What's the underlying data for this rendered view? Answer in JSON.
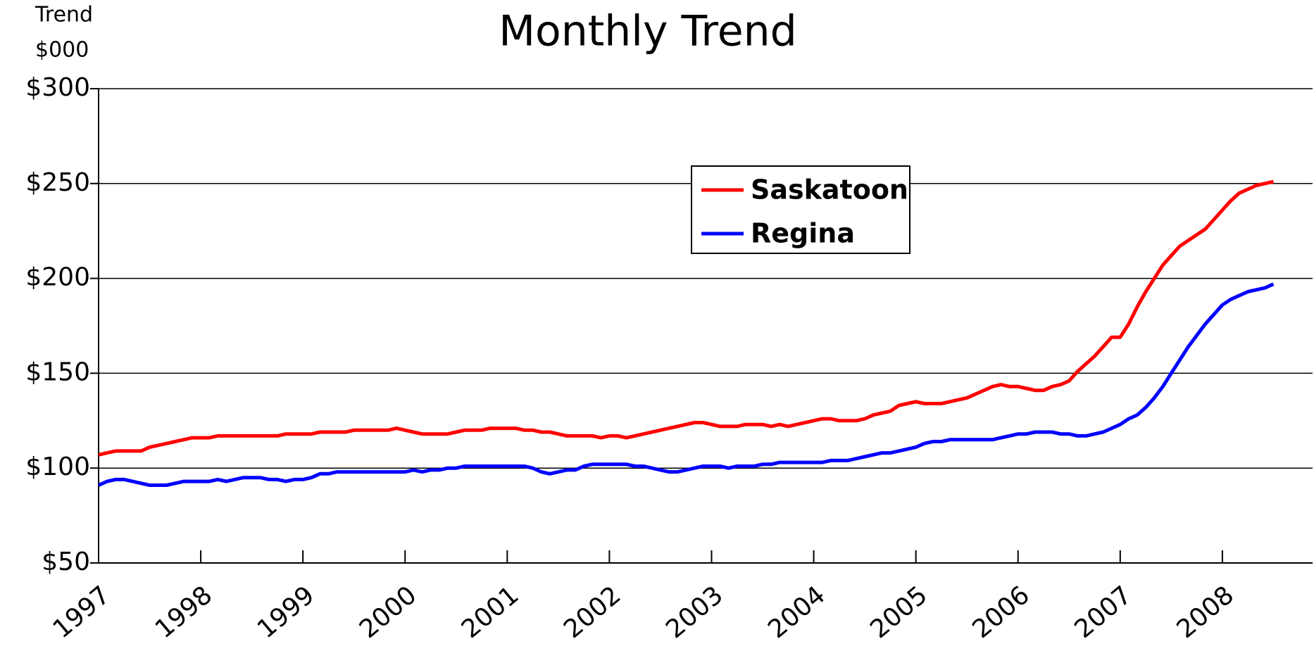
{
  "chart_data": {
    "type": "line",
    "title": "Monthly Trend",
    "y_label": [
      "Trend",
      "$000"
    ],
    "categories": [
      "1997",
      null,
      null,
      null,
      null,
      null,
      null,
      null,
      null,
      null,
      null,
      null,
      "1998",
      null,
      null,
      null,
      null,
      null,
      null,
      null,
      null,
      null,
      null,
      null,
      "1999",
      null,
      null,
      null,
      null,
      null,
      null,
      null,
      null,
      null,
      null,
      null,
      "2000",
      null,
      null,
      null,
      null,
      null,
      null,
      null,
      null,
      null,
      null,
      null,
      "2001",
      null,
      null,
      null,
      null,
      null,
      null,
      null,
      null,
      null,
      null,
      null,
      "2002",
      null,
      null,
      null,
      null,
      null,
      null,
      null,
      null,
      null,
      null,
      null,
      "2003",
      null,
      null,
      null,
      null,
      null,
      null,
      null,
      null,
      null,
      null,
      null,
      "2004",
      null,
      null,
      null,
      null,
      null,
      null,
      null,
      null,
      null,
      null,
      null,
      "2005",
      null,
      null,
      null,
      null,
      null,
      null,
      null,
      null,
      null,
      null,
      null,
      "2006",
      null,
      null,
      null,
      null,
      null,
      null,
      null,
      null,
      null,
      null,
      null,
      "2007",
      null,
      null,
      null,
      null,
      null,
      null,
      null,
      null,
      null,
      null,
      null,
      "2008",
      null,
      null,
      null,
      null,
      null,
      null
    ],
    "series": [
      {
        "name": "Saskatoon",
        "color": "#ff0000",
        "values": [
          107,
          108,
          109,
          109,
          109,
          109,
          111,
          112,
          113,
          114,
          115,
          116,
          116,
          116,
          117,
          117,
          117,
          117,
          117,
          117,
          117,
          117,
          118,
          118,
          118,
          118,
          119,
          119,
          119,
          119,
          120,
          120,
          120,
          120,
          120,
          121,
          120,
          119,
          118,
          118,
          118,
          118,
          119,
          120,
          120,
          120,
          121,
          121,
          121,
          121,
          120,
          120,
          119,
          119,
          118,
          117,
          117,
          117,
          117,
          116,
          117,
          117,
          116,
          117,
          118,
          119,
          120,
          121,
          122,
          123,
          124,
          124,
          123,
          122,
          122,
          122,
          123,
          123,
          123,
          122,
          123,
          122,
          123,
          124,
          125,
          126,
          126,
          125,
          125,
          125,
          126,
          128,
          129,
          130,
          133,
          134,
          135,
          134,
          134,
          134,
          135,
          136,
          137,
          139,
          141,
          143,
          144,
          143,
          143,
          142,
          141,
          141,
          143,
          144,
          146,
          151,
          155,
          159,
          164,
          169,
          169,
          176,
          185,
          193,
          200,
          207,
          212,
          217,
          220,
          223,
          226,
          231,
          236,
          241,
          245,
          247,
          249,
          250,
          251
        ]
      },
      {
        "name": "Regina",
        "color": "#0000ff",
        "values": [
          91,
          93,
          94,
          94,
          93,
          92,
          91,
          91,
          91,
          92,
          93,
          93,
          93,
          93,
          94,
          93,
          94,
          95,
          95,
          95,
          94,
          94,
          93,
          94,
          94,
          95,
          97,
          97,
          98,
          98,
          98,
          98,
          98,
          98,
          98,
          98,
          98,
          99,
          98,
          99,
          99,
          100,
          100,
          101,
          101,
          101,
          101,
          101,
          101,
          101,
          101,
          100,
          98,
          97,
          98,
          99,
          99,
          101,
          102,
          102,
          102,
          102,
          102,
          101,
          101,
          100,
          99,
          98,
          98,
          99,
          100,
          101,
          101,
          101,
          100,
          101,
          101,
          101,
          102,
          102,
          103,
          103,
          103,
          103,
          103,
          103,
          104,
          104,
          104,
          105,
          106,
          107,
          108,
          108,
          109,
          110,
          111,
          113,
          114,
          114,
          115,
          115,
          115,
          115,
          115,
          115,
          116,
          117,
          118,
          118,
          119,
          119,
          119,
          118,
          118,
          117,
          117,
          118,
          119,
          121,
          123,
          126,
          128,
          132,
          137,
          143,
          150,
          157,
          164,
          170,
          176,
          181,
          186,
          189,
          191,
          193,
          194,
          195,
          197
        ]
      }
    ],
    "ylim": [
      50,
      300
    ],
    "yticks": [
      {
        "value": 50,
        "label": "$50"
      },
      {
        "value": 100,
        "label": "$100"
      },
      {
        "value": 150,
        "label": "$150"
      },
      {
        "value": 200,
        "label": "$200"
      },
      {
        "value": 250,
        "label": "$250"
      },
      {
        "value": 300,
        "label": "$300"
      }
    ],
    "grid": true
  }
}
